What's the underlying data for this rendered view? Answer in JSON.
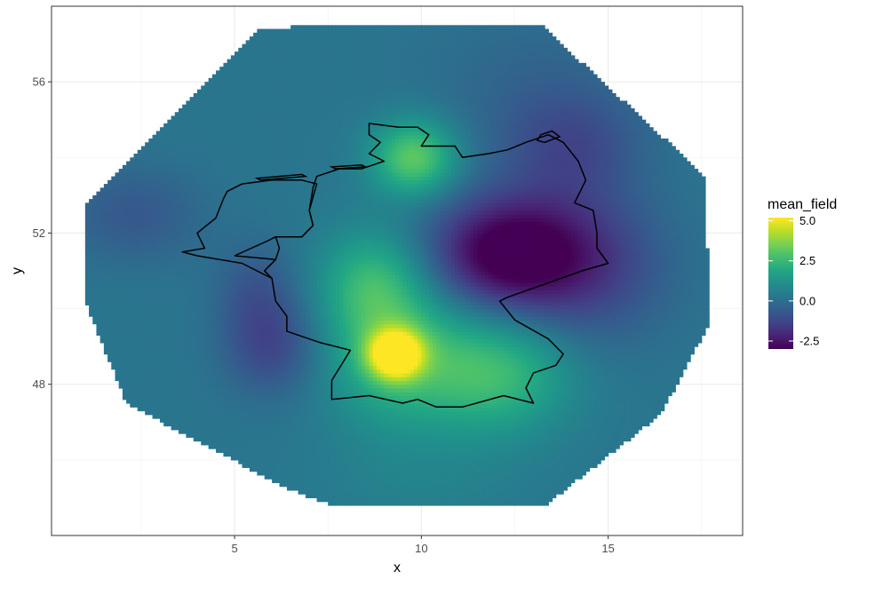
{
  "chart_data": {
    "type": "heatmap",
    "title": "",
    "xlabel": "x",
    "ylabel": "y",
    "xlim": [
      0.1,
      18.6
    ],
    "ylim": [
      44.0,
      58.0
    ],
    "x_ticks": [
      5,
      10,
      15
    ],
    "y_ticks": [
      48,
      52,
      56
    ],
    "x_tick_labels": [
      "5",
      "10",
      "15"
    ],
    "y_tick_labels": [
      "48",
      "52",
      "56"
    ],
    "grid": true,
    "colorscale": "viridis",
    "legend": {
      "title": "mean_field",
      "placement": "right",
      "range": [
        -3.0,
        5.2
      ],
      "breaks": [
        5.0,
        2.5,
        0.0,
        -2.5
      ],
      "break_labels": [
        "5.0",
        "2.5",
        "0.0",
        "-2.5"
      ]
    },
    "mesh_boundary": [
      [
        7.4,
        57.5
      ],
      [
        13.2,
        57.5
      ],
      [
        17.6,
        53.5
      ],
      [
        17.7,
        49.6
      ],
      [
        16.4,
        47.2
      ],
      [
        13.3,
        44.8
      ],
      [
        7.6,
        44.8
      ],
      [
        6.3,
        45.3
      ],
      [
        2.1,
        47.5
      ],
      [
        1.0,
        50.2
      ],
      [
        1.0,
        52.7
      ],
      [
        5.6,
        57.4
      ]
    ],
    "field": {
      "background": 0.2,
      "features": [
        {
          "x": 9.3,
          "y": 48.8,
          "amp": 4.8,
          "sx": 0.5,
          "sy": 0.45
        },
        {
          "x": 9.3,
          "y": 48.8,
          "amp": 2.2,
          "sx": 1.3,
          "sy": 1.3
        },
        {
          "x": 8.7,
          "y": 50.7,
          "amp": 2.0,
          "sx": 1.0,
          "sy": 1.0
        },
        {
          "x": 12.0,
          "y": 48.3,
          "amp": 2.4,
          "sx": 1.4,
          "sy": 1.1
        },
        {
          "x": 9.8,
          "y": 54.0,
          "amp": 3.0,
          "sx": 0.8,
          "sy": 0.7
        },
        {
          "x": 12.2,
          "y": 51.5,
          "amp": -3.2,
          "sx": 1.4,
          "sy": 1.0
        },
        {
          "x": 14.2,
          "y": 51.2,
          "amp": -1.8,
          "sx": 1.6,
          "sy": 1.4
        },
        {
          "x": 14.0,
          "y": 54.3,
          "amp": -1.2,
          "sx": 1.3,
          "sy": 1.0
        },
        {
          "x": 6.0,
          "y": 49.0,
          "amp": -1.4,
          "sx": 0.9,
          "sy": 0.9
        },
        {
          "x": 5.6,
          "y": 50.5,
          "amp": -0.9,
          "sx": 0.8,
          "sy": 0.9
        },
        {
          "x": 2.3,
          "y": 52.5,
          "amp": -0.9,
          "sx": 1.3,
          "sy": 0.9
        },
        {
          "x": 13.0,
          "y": 56.0,
          "amp": -0.5,
          "sx": 2.0,
          "sy": 1.4
        },
        {
          "x": 10.0,
          "y": 45.5,
          "amp": 0.4,
          "sx": 2.0,
          "sy": 1.0
        }
      ]
    },
    "outline": [
      [
        6.1,
        51.9
      ],
      [
        6.8,
        51.9
      ],
      [
        7.1,
        52.2
      ],
      [
        7.0,
        52.6
      ],
      [
        7.1,
        53.2
      ],
      [
        7.2,
        53.5
      ],
      [
        7.8,
        53.7
      ],
      [
        8.4,
        53.7
      ],
      [
        8.7,
        53.8
      ],
      [
        9.0,
        53.9
      ],
      [
        8.6,
        54.1
      ],
      [
        8.9,
        54.4
      ],
      [
        8.6,
        54.6
      ],
      [
        8.6,
        54.9
      ],
      [
        9.4,
        54.8
      ],
      [
        9.9,
        54.8
      ],
      [
        10.2,
        54.6
      ],
      [
        10.0,
        54.3
      ],
      [
        10.9,
        54.3
      ],
      [
        11.1,
        54.0
      ],
      [
        11.8,
        54.1
      ],
      [
        12.3,
        54.2
      ],
      [
        12.8,
        54.4
      ],
      [
        13.4,
        54.6
      ],
      [
        13.8,
        54.4
      ],
      [
        14.2,
        53.9
      ],
      [
        14.4,
        53.4
      ],
      [
        14.1,
        52.8
      ],
      [
        14.6,
        52.6
      ],
      [
        14.7,
        52.0
      ],
      [
        14.7,
        51.6
      ],
      [
        15.0,
        51.2
      ],
      [
        14.3,
        51.0
      ],
      [
        12.3,
        50.3
      ],
      [
        12.1,
        50.2
      ],
      [
        12.5,
        49.7
      ],
      [
        13.4,
        49.2
      ],
      [
        13.8,
        48.8
      ],
      [
        13.6,
        48.5
      ],
      [
        13.0,
        48.3
      ],
      [
        12.8,
        47.9
      ],
      [
        13.0,
        47.5
      ],
      [
        12.2,
        47.7
      ],
      [
        11.1,
        47.4
      ],
      [
        10.4,
        47.4
      ],
      [
        9.9,
        47.6
      ],
      [
        9.5,
        47.5
      ],
      [
        8.6,
        47.7
      ],
      [
        7.6,
        47.6
      ],
      [
        7.6,
        48.1
      ],
      [
        8.1,
        48.9
      ],
      [
        7.3,
        49.1
      ],
      [
        6.4,
        49.4
      ],
      [
        6.4,
        49.8
      ],
      [
        6.1,
        50.2
      ],
      [
        6.0,
        50.8
      ],
      [
        5.8,
        51.0
      ],
      [
        6.1,
        51.3
      ],
      [
        6.2,
        51.6
      ],
      [
        6.1,
        51.9
      ]
    ],
    "outline_secondary": [
      [
        5.0,
        51.4
      ],
      [
        6.1,
        51.3
      ],
      [
        5.8,
        51.0
      ],
      [
        6.0,
        50.8
      ],
      [
        5.2,
        51.2
      ],
      [
        4.6,
        51.3
      ],
      [
        4.0,
        51.4
      ],
      [
        3.6,
        51.5
      ],
      [
        4.2,
        51.6
      ],
      [
        4.0,
        52.0
      ],
      [
        4.5,
        52.4
      ],
      [
        4.7,
        52.9
      ],
      [
        4.8,
        53.1
      ],
      [
        5.2,
        53.3
      ],
      [
        6.0,
        53.4
      ],
      [
        6.8,
        53.4
      ],
      [
        7.2,
        53.3
      ],
      [
        7.0,
        52.6
      ],
      [
        7.1,
        52.2
      ],
      [
        6.8,
        51.9
      ],
      [
        6.1,
        51.9
      ],
      [
        5.9,
        51.8
      ],
      [
        5.0,
        51.4
      ]
    ],
    "islands": [
      [
        [
          7.6,
          53.75
        ],
        [
          8.4,
          53.8
        ],
        [
          8.5,
          53.75
        ],
        [
          7.7,
          53.7
        ],
        [
          7.6,
          53.75
        ]
      ],
      [
        [
          5.6,
          53.45
        ],
        [
          6.8,
          53.55
        ],
        [
          6.9,
          53.5
        ],
        [
          5.7,
          53.4
        ],
        [
          5.6,
          53.45
        ]
      ],
      [
        [
          13.2,
          54.6
        ],
        [
          13.5,
          54.7
        ],
        [
          13.7,
          54.55
        ],
        [
          13.3,
          54.4
        ],
        [
          13.1,
          54.45
        ],
        [
          13.2,
          54.6
        ]
      ]
    ]
  }
}
